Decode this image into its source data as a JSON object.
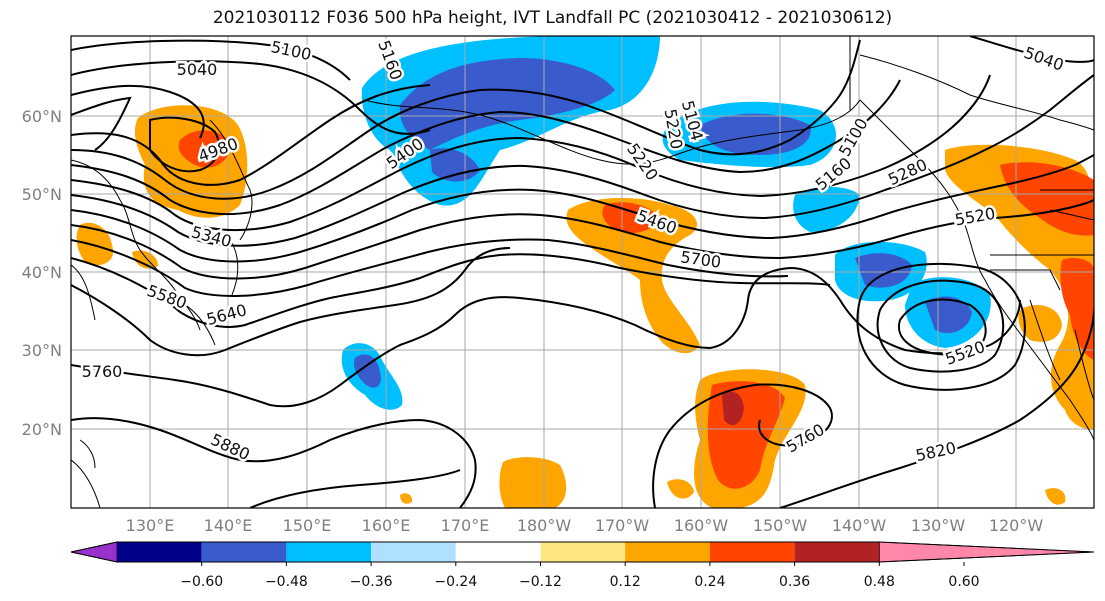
{
  "title": "2021030112 F036 500 hPa height, IVT Landfall PC (2021030412 - 2021030612)",
  "map": {
    "lat_labels": [
      "60°N",
      "50°N",
      "40°N",
      "30°N",
      "20°N"
    ],
    "lon_labels": [
      "130°E",
      "140°E",
      "150°E",
      "160°E",
      "170°E",
      "180°W",
      "170°W",
      "160°W",
      "150°W",
      "140°W",
      "130°W",
      "120°W"
    ],
    "contour_labels": [
      "5100",
      "5040",
      "5160",
      "5040",
      "5220",
      "4980",
      "5400",
      "5220",
      "5160",
      "5100",
      "5280",
      "5460",
      "5340",
      "5520",
      "5700",
      "5580",
      "5640",
      "5520",
      "5760",
      "5880",
      "5760",
      "5820",
      "5104"
    ]
  },
  "colorbar": {
    "colors": [
      "#9932CC",
      "#00008B",
      "#3A5BCC",
      "#00BFFF",
      "#B0E0FF",
      "#FFFFFF",
      "#FFE680",
      "#FFA500",
      "#FF4500",
      "#B22222",
      "#FF88AA"
    ],
    "tick_labels": [
      "−0.60",
      "−0.48",
      "−0.36",
      "−0.24",
      "−0.12",
      "0.12",
      "0.24",
      "0.36",
      "0.48",
      "0.60"
    ]
  },
  "shading_colors": {
    "blue_light": "#00BFFF",
    "blue_mid": "#3A5BCC",
    "orange": "#FFA500",
    "orange_light": "#FFE680",
    "red": "#FF4500",
    "dark_red": "#B22222"
  }
}
